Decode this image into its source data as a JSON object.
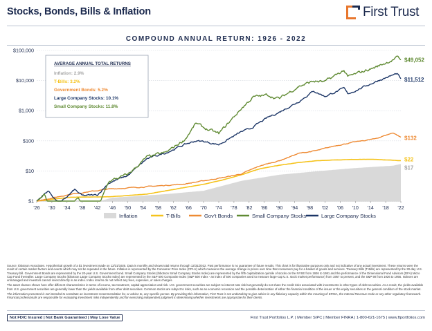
{
  "header": {
    "title": "Stocks, Bonds, Bills & Inflation",
    "logo_text": "First Trust"
  },
  "subtitle": "COMPOUND ANNUAL RETURN: 1926 - 2022",
  "legend_box": {
    "heading": "AVERAGE ANNUAL TOTAL RETURNS",
    "items": [
      {
        "label": "Inflation: 2.9%",
        "color": "#a6a6a6"
      },
      {
        "label": "T-Bills: 3.2%",
        "color": "#f5c31c"
      },
      {
        "label": "Government Bonds: 5.2%",
        "color": "#ee8a33"
      },
      {
        "label": "Large Company Stocks: 10.1%",
        "color": "#1b3566"
      },
      {
        "label": "Small Company Stocks: 11.8%",
        "color": "#5f8a32"
      }
    ]
  },
  "chart_data": {
    "type": "line",
    "title": "COMPOUND ANNUAL RETURN: 1926 - 2022",
    "ylog": true,
    "ylim": [
      1,
      100000
    ],
    "xlim": [
      1926,
      2022
    ],
    "y_ticks": [
      {
        "value": 100000,
        "label": "$100,000"
      },
      {
        "value": 10000,
        "label": "$10,000"
      },
      {
        "value": 1000,
        "label": "$1,000"
      },
      {
        "value": 100,
        "label": "$100"
      },
      {
        "value": 10,
        "label": "$10"
      },
      {
        "value": 1,
        "label": "$1"
      }
    ],
    "x_ticks": [
      {
        "value": 1926,
        "label": "'26"
      },
      {
        "value": 1930,
        "label": "'30"
      },
      {
        "value": 1934,
        "label": "'34"
      },
      {
        "value": 1938,
        "label": "'38"
      },
      {
        "value": 1942,
        "label": "'42"
      },
      {
        "value": 1946,
        "label": "'46"
      },
      {
        "value": 1950,
        "label": "'50"
      },
      {
        "value": 1954,
        "label": "'54"
      },
      {
        "value": 1958,
        "label": "'58"
      },
      {
        "value": 1962,
        "label": "'62"
      },
      {
        "value": 1966,
        "label": "'66"
      },
      {
        "value": 1970,
        "label": "'70"
      },
      {
        "value": 1974,
        "label": "'74"
      },
      {
        "value": 1978,
        "label": "'78"
      },
      {
        "value": 1982,
        "label": "'82"
      },
      {
        "value": 1986,
        "label": "'86"
      },
      {
        "value": 1990,
        "label": "'90"
      },
      {
        "value": 1994,
        "label": "'94"
      },
      {
        "value": 1998,
        "label": "'98"
      },
      {
        "value": 2002,
        "label": "'02"
      },
      {
        "value": 2006,
        "label": "'06"
      },
      {
        "value": 2010,
        "label": "'10"
      },
      {
        "value": 2014,
        "label": "'14"
      },
      {
        "value": 2018,
        "label": "'18"
      },
      {
        "value": 2022,
        "label": "'22"
      }
    ],
    "series": [
      {
        "name": "Inflation",
        "key": "inflation",
        "color": "#d9d9d9",
        "style": "area",
        "end_label": "$17",
        "x": [
          1926,
          1930,
          1933,
          1940,
          1946,
          1950,
          1960,
          1970,
          1980,
          1990,
          2000,
          2010,
          2020,
          2022
        ],
        "y": [
          1,
          0.97,
          0.8,
          0.82,
          1.3,
          1.4,
          1.7,
          2.2,
          4.7,
          7.5,
          9.8,
          12.5,
          15.0,
          17
        ]
      },
      {
        "name": "T-Bills",
        "key": "tbills",
        "color": "#f5c31c",
        "style": "line",
        "end_label": "$22",
        "x": [
          1926,
          1935,
          1945,
          1955,
          1960,
          1970,
          1975,
          1980,
          1985,
          1990,
          1995,
          2000,
          2008,
          2015,
          2022
        ],
        "y": [
          1,
          1.35,
          1.38,
          1.7,
          2.2,
          3.6,
          5.0,
          7.5,
          12.0,
          15.5,
          19.0,
          22.0,
          24.0,
          24.2,
          22
        ]
      },
      {
        "name": "Gov't Bonds",
        "key": "bonds",
        "color": "#ee8a33",
        "style": "line",
        "end_label": "$132",
        "x": [
          1926,
          1935,
          1945,
          1955,
          1965,
          1975,
          1980,
          1985,
          1990,
          1995,
          2000,
          2005,
          2010,
          2015,
          2020,
          2022
        ],
        "y": [
          1,
          1.7,
          2.5,
          3.0,
          3.7,
          6.0,
          8.0,
          15.0,
          22.0,
          38.0,
          48.0,
          70.0,
          92.0,
          115,
          185,
          132
        ]
      },
      {
        "name": "Large Company Stocks",
        "key": "large",
        "color": "#1b3566",
        "style": "line",
        "end_label": "$11,512",
        "x": [
          1926,
          1929,
          1932,
          1936,
          1938,
          1942,
          1945,
          1950,
          1955,
          1960,
          1965,
          1968,
          1970,
          1974,
          1980,
          1982,
          1987,
          1990,
          1995,
          1999,
          2002,
          2007,
          2008,
          2012,
          2016,
          2021,
          2022
        ],
        "y": [
          1,
          2.2,
          0.8,
          2.4,
          1.5,
          1.6,
          4.0,
          7.0,
          25.0,
          40.0,
          75.0,
          100,
          95,
          75,
          200,
          240,
          600,
          900,
          2000,
          4500,
          3000,
          5500,
          3600,
          6000,
          10000,
          17000,
          11512
        ]
      },
      {
        "name": "Small Company Stocks",
        "key": "small",
        "color": "#5f8a32",
        "style": "line",
        "end_label": "$49,052",
        "x": [
          1926,
          1928,
          1932,
          1933,
          1937,
          1938,
          1940,
          1942,
          1945,
          1950,
          1955,
          1960,
          1965,
          1968,
          1970,
          1974,
          1980,
          1983,
          1987,
          1990,
          1995,
          1999,
          2002,
          2007,
          2008,
          2012,
          2016,
          2021,
          2022
        ],
        "y": [
          1,
          1.5,
          0.22,
          0.5,
          1.3,
          0.5,
          0.6,
          0.5,
          4.5,
          7.5,
          28,
          40,
          110,
          380,
          270,
          170,
          1200,
          2800,
          3300,
          2500,
          6500,
          9500,
          9000,
          22000,
          13000,
          20000,
          30000,
          58000,
          49052
        ]
      }
    ]
  },
  "legend": [
    {
      "label": "Inflation",
      "key": "inflation",
      "kind": "area"
    },
    {
      "label": "T-Bills",
      "key": "tbills",
      "kind": "line"
    },
    {
      "label": "Gov't Bonds",
      "key": "bonds",
      "kind": "line"
    },
    {
      "label": "Small Company Stocks",
      "key": "small",
      "kind": "line"
    },
    {
      "label": "Large Company Stocks",
      "key": "large",
      "kind": "line"
    }
  ],
  "footnotes": {
    "p1": "Source: Ibbotson Associates. Hypothetical growth of a $1 investment made on 12/31/1925. Data is monthly and shows total returns through 12/31/2022. Past performance is no guarantee of future results. This chart is for illustrative purposes only and not indicative of any actual investment. These returns were the result of certain market factors and events which may not be repeated in the future. Inflation is represented by the Consumer Price Index (CPI-U) which measures the average change in prices over time that consumers pay for a basket of goods and services. Treasury Bills (T-Bills) are represented by the 30-day U.S. Treasury bill. Government Bonds are represented by the 20-year U.S. Government bond. Small Company Stocks (Ibbotson Small Company Stocks Index) are represented by the fifth capitalization quintile of stocks on the NYSE from 1926 to 1981 and the performance of the Dimensional Fund Advisors (DFA) Micro Cap Fund thereafter. Large Company Stocks (Ibbotson Large Company Stocks Index) are represented by the S&P 500 Composite Index (S&P 500 Index - an index of 500 companies used to measure large-cap U.S. stock market performance) from 1957 to present, and the S&P 90 from 1926 to 1956. Indexes are unmanaged and investors cannot invest directly in an index. Index returns do not reflect any fees, expenses, or sales charges.",
    "p2": "The asset classes shown here offer different characteristics in terms of income, tax treatment, capital appreciation and risk. U.S. government securities are subject to interest rate risk but generally do not share the credit risks associated with investments in other types of debt securities. As a result, the yields available from U.S. government securities are generally lower than the yields available from other debt securities. Common stocks are subject to risks, such as an economic recession and the possible deterioration of either the financial condition of the issuer or the equity securities or the general condition of the stock market.",
    "p3": "The information presented is not intended to constitute an investment recommendation for, or advice to, any specific person. By providing this information, First Trust is not undertaking to give advice in any fiduciary capacity within the meaning of ERISA, the Internal Revenue Code or any other regulatory framework. Financial professionals are responsible for evaluating investment risks independently and for exercising independent judgment in determining whether investments are appropriate for their clients."
  },
  "footer": {
    "disclaimer": "Not FDIC Insured | Not Bank Guaranteed | May Lose Value",
    "contact": "First Trust Portfolios L.P. | Member SIPC | Member FINRA | 1-800-621-1675 | www.ftportfolios.com"
  }
}
